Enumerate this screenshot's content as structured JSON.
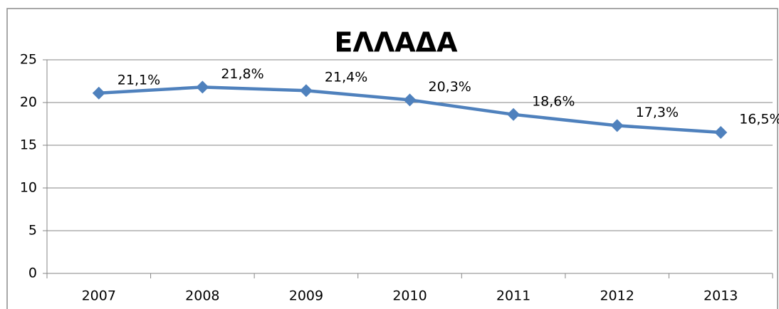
{
  "chart_data": {
    "type": "line",
    "title": "ΕΛΛΑΔΑ",
    "categories": [
      "2007",
      "2008",
      "2009",
      "2010",
      "2011",
      "2012",
      "2013"
    ],
    "series": [
      {
        "name": "ΕΛΛΑΔΑ",
        "color": "#4f81bd",
        "values": [
          21.1,
          21.8,
          21.4,
          20.3,
          18.6,
          17.3,
          16.5
        ],
        "value_labels": [
          "21,1%",
          "21,8%",
          "21,4%",
          "20,3%",
          "18,6%",
          "17,3%",
          "16,5%"
        ]
      }
    ],
    "ylim": [
      0,
      25
    ],
    "yticks": [
      0,
      5,
      10,
      15,
      20,
      25
    ],
    "grid": true
  }
}
